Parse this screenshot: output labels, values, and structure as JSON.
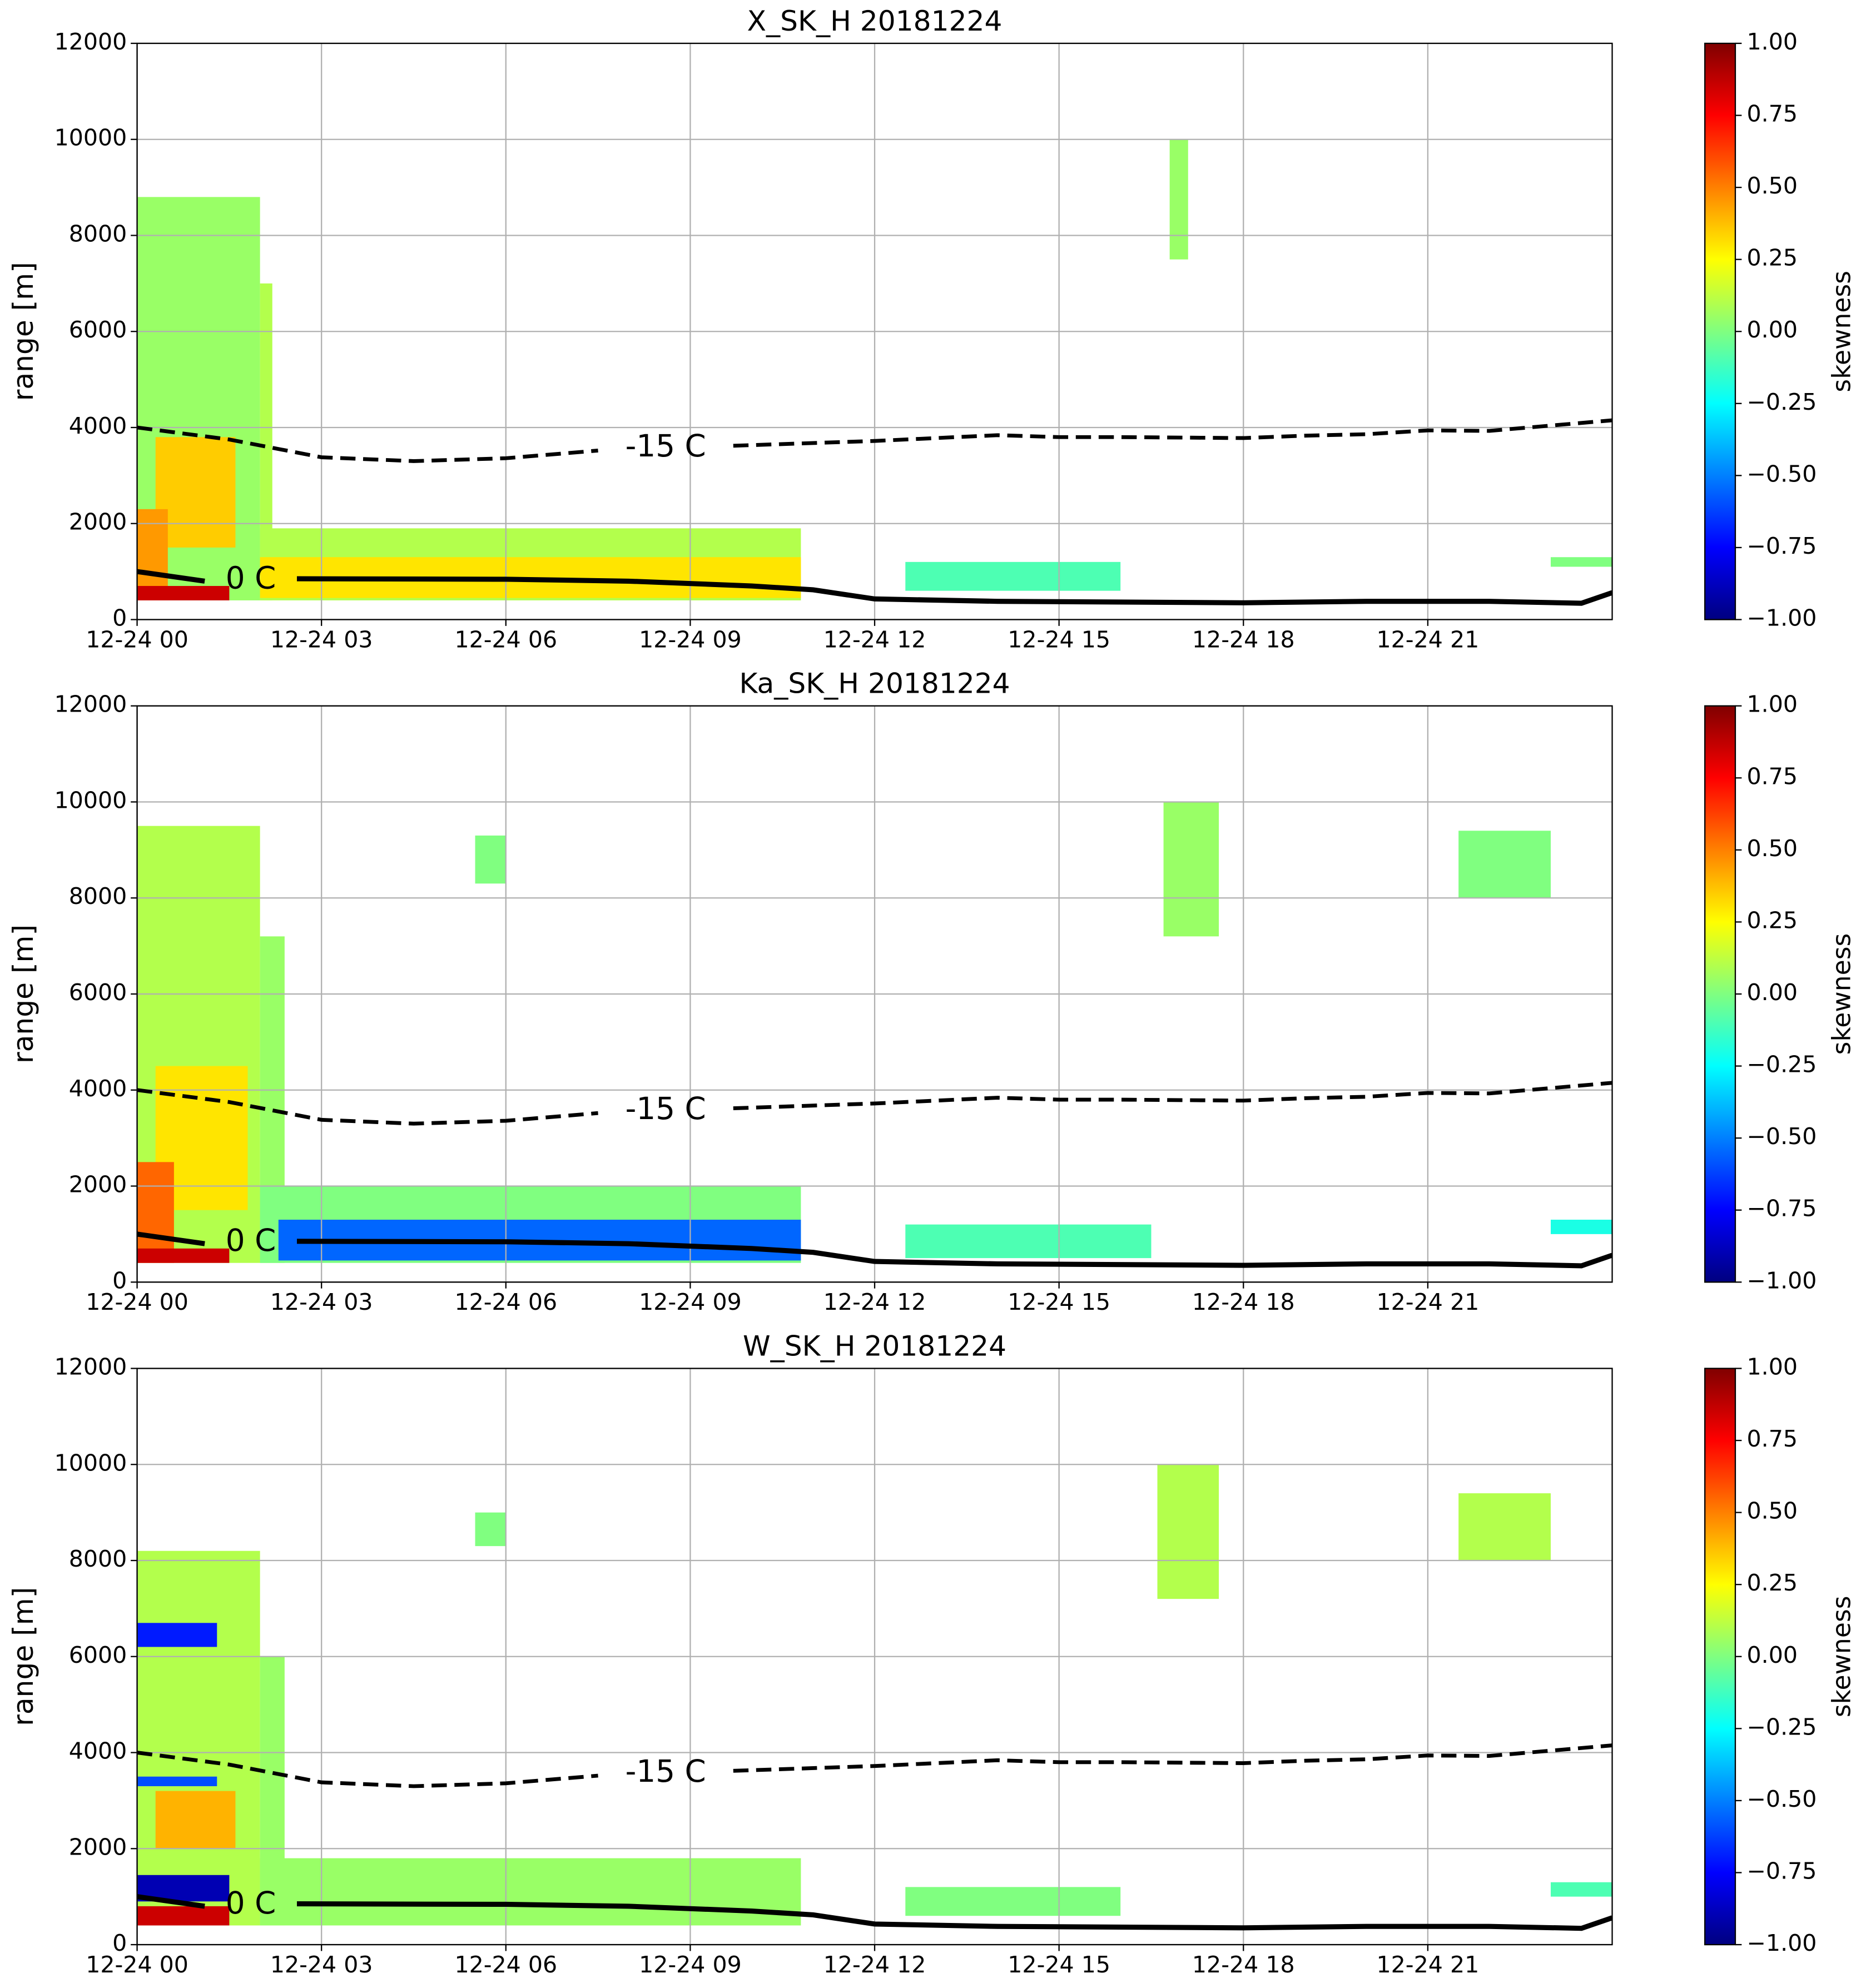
{
  "chart_data": [
    {
      "type": "heatmap",
      "title": "X_SK_H 20181224",
      "ylabel": "range [m]",
      "colormap": "jet",
      "grid": true,
      "xlim": [
        0,
        24
      ],
      "xticks": [
        {
          "value": 0,
          "label": "12-24 00"
        },
        {
          "value": 3,
          "label": "12-24 03"
        },
        {
          "value": 6,
          "label": "12-24 06"
        },
        {
          "value": 9,
          "label": "12-24 09"
        },
        {
          "value": 12,
          "label": "12-24 12"
        },
        {
          "value": 15,
          "label": "12-24 15"
        },
        {
          "value": 18,
          "label": "12-24 18"
        },
        {
          "value": 21,
          "label": "12-24 21"
        }
      ],
      "ylim": [
        0,
        12000
      ],
      "yticks": [
        0,
        2000,
        4000,
        6000,
        8000,
        10000,
        12000
      ],
      "colorbar": {
        "label": "skewness",
        "lim": [
          -1,
          1
        ],
        "ticks": [
          {
            "value": -1,
            "label": "−1.00"
          },
          {
            "value": -0.75,
            "label": "−0.75"
          },
          {
            "value": -0.5,
            "label": "−0.50"
          },
          {
            "value": -0.25,
            "label": "−0.25"
          },
          {
            "value": 0,
            "label": "0.00"
          },
          {
            "value": 0.25,
            "label": "0.25"
          },
          {
            "value": 0.5,
            "label": "0.50"
          },
          {
            "value": 0.75,
            "label": "0.75"
          },
          {
            "value": 1,
            "label": "1.00"
          }
        ]
      },
      "cells": [
        {
          "x": [
            0,
            2
          ],
          "y": [
            400,
            8800
          ],
          "value": 0.05
        },
        {
          "x": [
            2,
            2.2
          ],
          "y": [
            400,
            7000
          ],
          "value": 0.1
        },
        {
          "x": [
            0.3,
            1.6
          ],
          "y": [
            1500,
            3800
          ],
          "value": 0.35
        },
        {
          "x": [
            0,
            0.5
          ],
          "y": [
            400,
            2300
          ],
          "value": 0.45
        },
        {
          "x": [
            2,
            10.8
          ],
          "y": [
            400,
            1900
          ],
          "value": 0.1
        },
        {
          "x": [
            2,
            10.8
          ],
          "y": [
            450,
            1300
          ],
          "value": 0.3
        },
        {
          "x": [
            0,
            1.5
          ],
          "y": [
            400,
            700
          ],
          "value": 0.85
        },
        {
          "x": [
            16.8,
            17.1
          ],
          "y": [
            7500,
            10000
          ],
          "value": 0.05
        },
        {
          "x": [
            12.5,
            16
          ],
          "y": [
            600,
            1200
          ],
          "value": -0.1
        },
        {
          "x": [
            23,
            24
          ],
          "y": [
            1100,
            1300
          ],
          "value": 0
        }
      ],
      "contours": [
        {
          "label": "-15 C",
          "style": "dashed",
          "x": [
            0,
            1.5,
            3,
            4.5,
            6,
            7.5,
            null,
            9.7,
            12,
            14,
            15,
            16,
            18,
            19,
            20,
            21,
            22,
            24
          ],
          "y": [
            4000,
            3750,
            3380,
            3300,
            3360,
            3520,
            null,
            3620,
            3720,
            3840,
            3800,
            3800,
            3780,
            3830,
            3860,
            3940,
            3930,
            4150
          ]
        },
        {
          "label": "0 C",
          "style": "solid",
          "x": [
            0,
            1.1,
            null,
            2.6,
            6,
            8,
            10,
            11,
            12,
            14,
            18,
            20,
            22,
            23.5,
            24
          ],
          "y": [
            1000,
            800,
            null,
            850,
            840,
            800,
            700,
            620,
            430,
            380,
            350,
            380,
            380,
            340,
            560
          ]
        }
      ]
    },
    {
      "type": "heatmap",
      "title": "Ka_SK_H 20181224",
      "ylabel": "range [m]",
      "colormap": "jet",
      "grid": true,
      "xlim": [
        0,
        24
      ],
      "xticks": [
        {
          "value": 0,
          "label": "12-24 00"
        },
        {
          "value": 3,
          "label": "12-24 03"
        },
        {
          "value": 6,
          "label": "12-24 06"
        },
        {
          "value": 9,
          "label": "12-24 09"
        },
        {
          "value": 12,
          "label": "12-24 12"
        },
        {
          "value": 15,
          "label": "12-24 15"
        },
        {
          "value": 18,
          "label": "12-24 18"
        },
        {
          "value": 21,
          "label": "12-24 21"
        }
      ],
      "ylim": [
        0,
        12000
      ],
      "yticks": [
        0,
        2000,
        4000,
        6000,
        8000,
        10000,
        12000
      ],
      "colorbar": {
        "label": "skewness",
        "lim": [
          -1,
          1
        ],
        "ticks": [
          {
            "value": -1,
            "label": "−1.00"
          },
          {
            "value": -0.75,
            "label": "−0.75"
          },
          {
            "value": -0.5,
            "label": "−0.50"
          },
          {
            "value": -0.25,
            "label": "−0.25"
          },
          {
            "value": 0,
            "label": "0.00"
          },
          {
            "value": 0.25,
            "label": "0.25"
          },
          {
            "value": 0.5,
            "label": "0.50"
          },
          {
            "value": 0.75,
            "label": "0.75"
          },
          {
            "value": 1,
            "label": "1.00"
          }
        ]
      },
      "cells": [
        {
          "x": [
            0,
            2
          ],
          "y": [
            400,
            9500
          ],
          "value": 0.1
        },
        {
          "x": [
            2,
            2.4
          ],
          "y": [
            400,
            7200
          ],
          "value": 0.05
        },
        {
          "x": [
            0.3,
            1.8
          ],
          "y": [
            1500,
            4500
          ],
          "value": 0.3
        },
        {
          "x": [
            0,
            0.6
          ],
          "y": [
            400,
            2500
          ],
          "value": 0.55
        },
        {
          "x": [
            2,
            10.8
          ],
          "y": [
            400,
            2000
          ],
          "value": 0
        },
        {
          "x": [
            2.3,
            10.8
          ],
          "y": [
            450,
            1300
          ],
          "value": -0.55
        },
        {
          "x": [
            0,
            1.5
          ],
          "y": [
            400,
            700
          ],
          "value": 0.85
        },
        {
          "x": [
            5.5,
            6
          ],
          "y": [
            8300,
            9300
          ],
          "value": 0
        },
        {
          "x": [
            16.7,
            17.6
          ],
          "y": [
            7200,
            10000
          ],
          "value": 0.05
        },
        {
          "x": [
            21.5,
            23.0
          ],
          "y": [
            8000,
            9400
          ],
          "value": 0
        },
        {
          "x": [
            12.5,
            16.5
          ],
          "y": [
            500,
            1200
          ],
          "value": -0.1
        },
        {
          "x": [
            23,
            24
          ],
          "y": [
            1000,
            1300
          ],
          "value": -0.2
        }
      ],
      "contours": [
        {
          "label": "-15 C",
          "style": "dashed",
          "x": [
            0,
            1.5,
            3,
            4.5,
            6,
            7.5,
            null,
            9.7,
            12,
            14,
            15,
            16,
            18,
            19,
            20,
            21,
            22,
            24
          ],
          "y": [
            4000,
            3750,
            3380,
            3300,
            3360,
            3520,
            null,
            3620,
            3720,
            3840,
            3800,
            3800,
            3780,
            3830,
            3860,
            3940,
            3930,
            4150
          ]
        },
        {
          "label": "0 C",
          "style": "solid",
          "x": [
            0,
            1.1,
            null,
            2.6,
            6,
            8,
            10,
            11,
            12,
            14,
            18,
            20,
            22,
            23.5,
            24
          ],
          "y": [
            1000,
            800,
            null,
            850,
            840,
            800,
            700,
            620,
            430,
            380,
            350,
            380,
            380,
            340,
            560
          ]
        }
      ]
    },
    {
      "type": "heatmap",
      "title": "W_SK_H 20181224",
      "ylabel": "range [m]",
      "colormap": "jet",
      "grid": true,
      "xlim": [
        0,
        24
      ],
      "xticks": [
        {
          "value": 0,
          "label": "12-24 00"
        },
        {
          "value": 3,
          "label": "12-24 03"
        },
        {
          "value": 6,
          "label": "12-24 06"
        },
        {
          "value": 9,
          "label": "12-24 09"
        },
        {
          "value": 12,
          "label": "12-24 12"
        },
        {
          "value": 15,
          "label": "12-24 15"
        },
        {
          "value": 18,
          "label": "12-24 18"
        },
        {
          "value": 21,
          "label": "12-24 21"
        }
      ],
      "ylim": [
        0,
        12000
      ],
      "yticks": [
        0,
        2000,
        4000,
        6000,
        8000,
        10000,
        12000
      ],
      "colorbar": {
        "label": "skewness",
        "lim": [
          -1,
          1
        ],
        "ticks": [
          {
            "value": -1,
            "label": "−1.00"
          },
          {
            "value": -0.75,
            "label": "−0.75"
          },
          {
            "value": -0.5,
            "label": "−0.50"
          },
          {
            "value": -0.25,
            "label": "−0.25"
          },
          {
            "value": 0,
            "label": "0.00"
          },
          {
            "value": 0.25,
            "label": "0.25"
          },
          {
            "value": 0.5,
            "label": "0.50"
          },
          {
            "value": 0.75,
            "label": "0.75"
          },
          {
            "value": 1,
            "label": "1.00"
          }
        ]
      },
      "cells": [
        {
          "x": [
            0,
            2
          ],
          "y": [
            400,
            8200
          ],
          "value": 0.1
        },
        {
          "x": [
            2,
            2.4
          ],
          "y": [
            400,
            6000
          ],
          "value": 0.05
        },
        {
          "x": [
            0,
            1.3
          ],
          "y": [
            6200,
            6700
          ],
          "value": -0.7
        },
        {
          "x": [
            0,
            1.3
          ],
          "y": [
            3300,
            3500
          ],
          "value": -0.6
        },
        {
          "x": [
            0.3,
            1.6
          ],
          "y": [
            2000,
            3200
          ],
          "value": 0.4
        },
        {
          "x": [
            2,
            10.8
          ],
          "y": [
            400,
            1800
          ],
          "value": 0.05
        },
        {
          "x": [
            0,
            1.5
          ],
          "y": [
            900,
            1450
          ],
          "value": -0.9
        },
        {
          "x": [
            0,
            1.5
          ],
          "y": [
            400,
            800
          ],
          "value": 0.85
        },
        {
          "x": [
            5.5,
            6
          ],
          "y": [
            8300,
            9000
          ],
          "value": 0
        },
        {
          "x": [
            16.6,
            17.6
          ],
          "y": [
            7200,
            10000
          ],
          "value": 0.1
        },
        {
          "x": [
            21.5,
            23.0
          ],
          "y": [
            8000,
            9400
          ],
          "value": 0.1
        },
        {
          "x": [
            12.5,
            16
          ],
          "y": [
            600,
            1200
          ],
          "value": 0
        },
        {
          "x": [
            23,
            24
          ],
          "y": [
            1000,
            1300
          ],
          "value": -0.1
        }
      ],
      "contours": [
        {
          "label": "-15 C",
          "style": "dashed",
          "x": [
            0,
            1.5,
            3,
            4.5,
            6,
            7.5,
            null,
            9.7,
            12,
            14,
            15,
            16,
            18,
            19,
            20,
            21,
            22,
            24
          ],
          "y": [
            4000,
            3750,
            3380,
            3300,
            3360,
            3520,
            null,
            3620,
            3720,
            3840,
            3800,
            3800,
            3780,
            3830,
            3860,
            3940,
            3930,
            4150
          ]
        },
        {
          "label": "0 C",
          "style": "solid",
          "x": [
            0,
            1.1,
            null,
            2.6,
            6,
            8,
            10,
            11,
            12,
            14,
            18,
            20,
            22,
            23.5,
            24
          ],
          "y": [
            1000,
            800,
            null,
            850,
            840,
            800,
            700,
            620,
            430,
            380,
            350,
            380,
            380,
            340,
            560
          ]
        }
      ]
    }
  ]
}
